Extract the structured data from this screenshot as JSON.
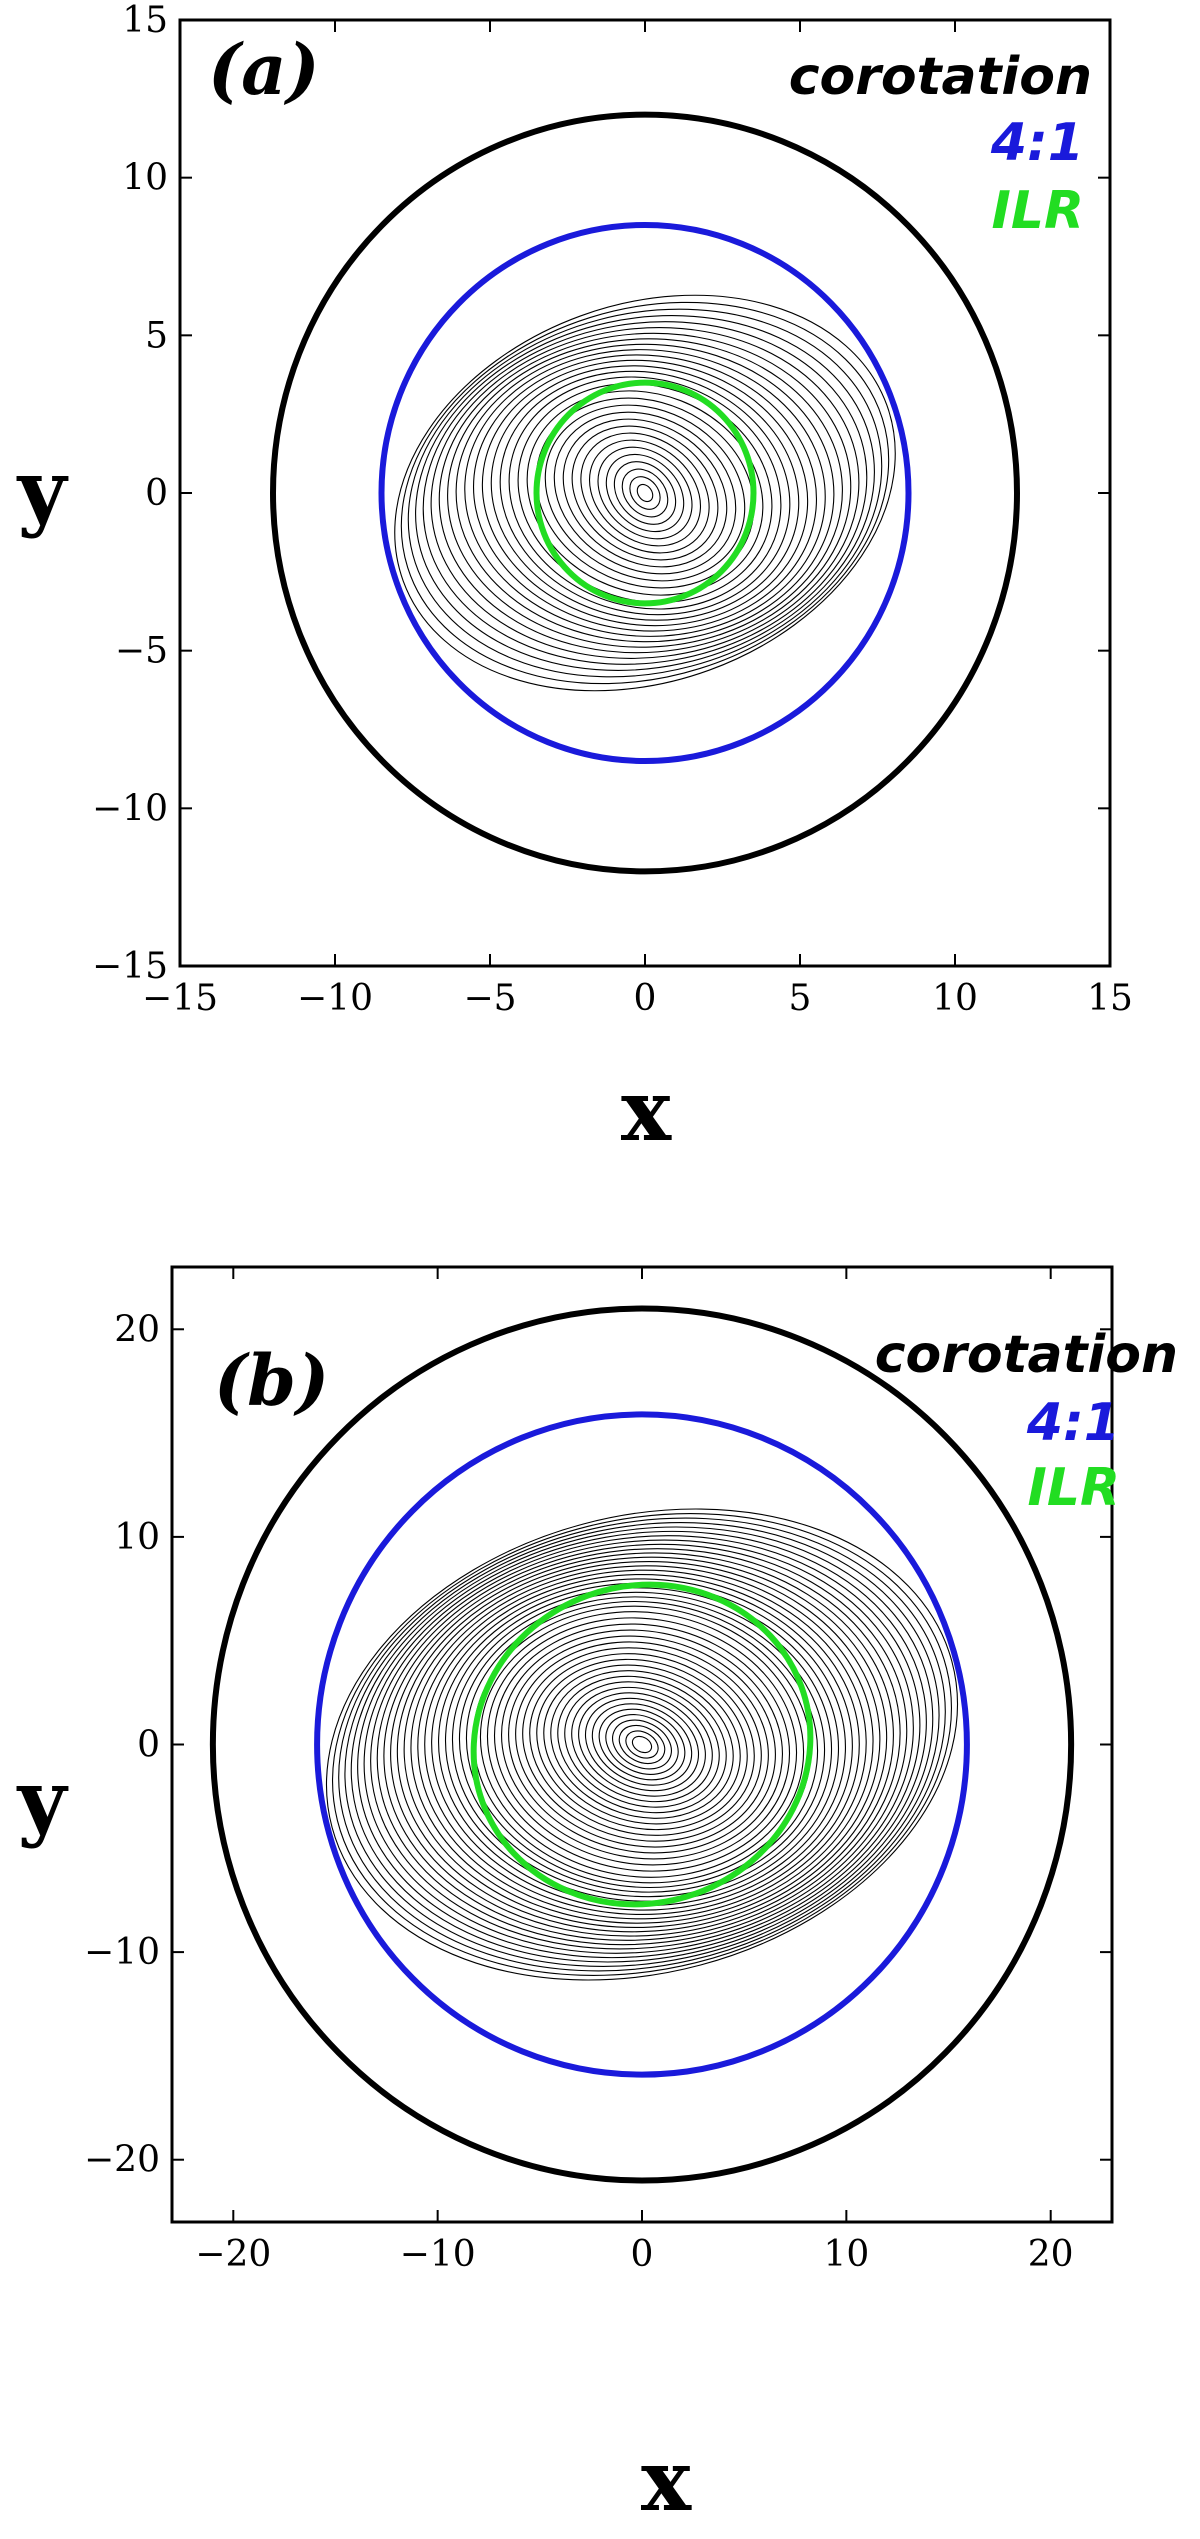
{
  "chart_data": [
    {
      "type": "line",
      "panel_label": "(a)",
      "xlabel": "x",
      "ylabel": "y",
      "xlim": [
        -15,
        15
      ],
      "ylim": [
        -15,
        15
      ],
      "xticks": [
        -15,
        -10,
        -5,
        0,
        5,
        10,
        15
      ],
      "yticks": [
        -15,
        -10,
        -5,
        0,
        5,
        10,
        15
      ],
      "grid": false,
      "legend_placement": "top-right",
      "legend": [
        {
          "label": "corotation",
          "color": "#000000"
        },
        {
          "label": "4:1",
          "color": "#1a1adb"
        },
        {
          "label": "ILR",
          "color": "#22dd22"
        }
      ],
      "series": [
        {
          "name": "corotation",
          "shape": "circle",
          "radius": 12,
          "color": "#000000"
        },
        {
          "name": "4:1",
          "shape": "circle",
          "radius": 8.5,
          "color": "#1a1adb"
        },
        {
          "name": "ILR",
          "shape": "circle",
          "radius": 3.5,
          "color": "#22dd22"
        }
      ],
      "orbit_family": {
        "color": "#000000",
        "count": 30,
        "r_min": 0.3,
        "r_max": 8.3,
        "axis_ratio": 0.72,
        "tilt_outer_deg": 20,
        "tilt_inner_deg": -55
      }
    },
    {
      "type": "line",
      "panel_label": "(b)",
      "xlabel": "x",
      "ylabel": "y",
      "xlim": [
        -23,
        23
      ],
      "ylim": [
        -23,
        23
      ],
      "xticks": [
        -20,
        -10,
        0,
        10,
        20
      ],
      "yticks": [
        -20,
        -10,
        0,
        10,
        20
      ],
      "grid": false,
      "legend_placement": "top-right",
      "legend": [
        {
          "label": "corotation",
          "color": "#000000"
        },
        {
          "label": "4:1",
          "color": "#1a1adb"
        },
        {
          "label": "ILR",
          "color": "#22dd22"
        }
      ],
      "series": [
        {
          "name": "corotation",
          "shape": "circle",
          "radius": 21,
          "color": "#000000"
        },
        {
          "name": "4:1",
          "shape": "circle",
          "radius": 15.9,
          "color": "#1a1adb"
        },
        {
          "name": "ILR",
          "shape": "ellipse",
          "radius": 8.3,
          "color": "#22dd22"
        }
      ],
      "orbit_family": {
        "color": "#000000",
        "count": 46,
        "r_min": 0.5,
        "r_max": 15.7,
        "axis_ratio": 0.7,
        "tilt_outer_deg": 15,
        "tilt_inner_deg": -30
      }
    }
  ]
}
